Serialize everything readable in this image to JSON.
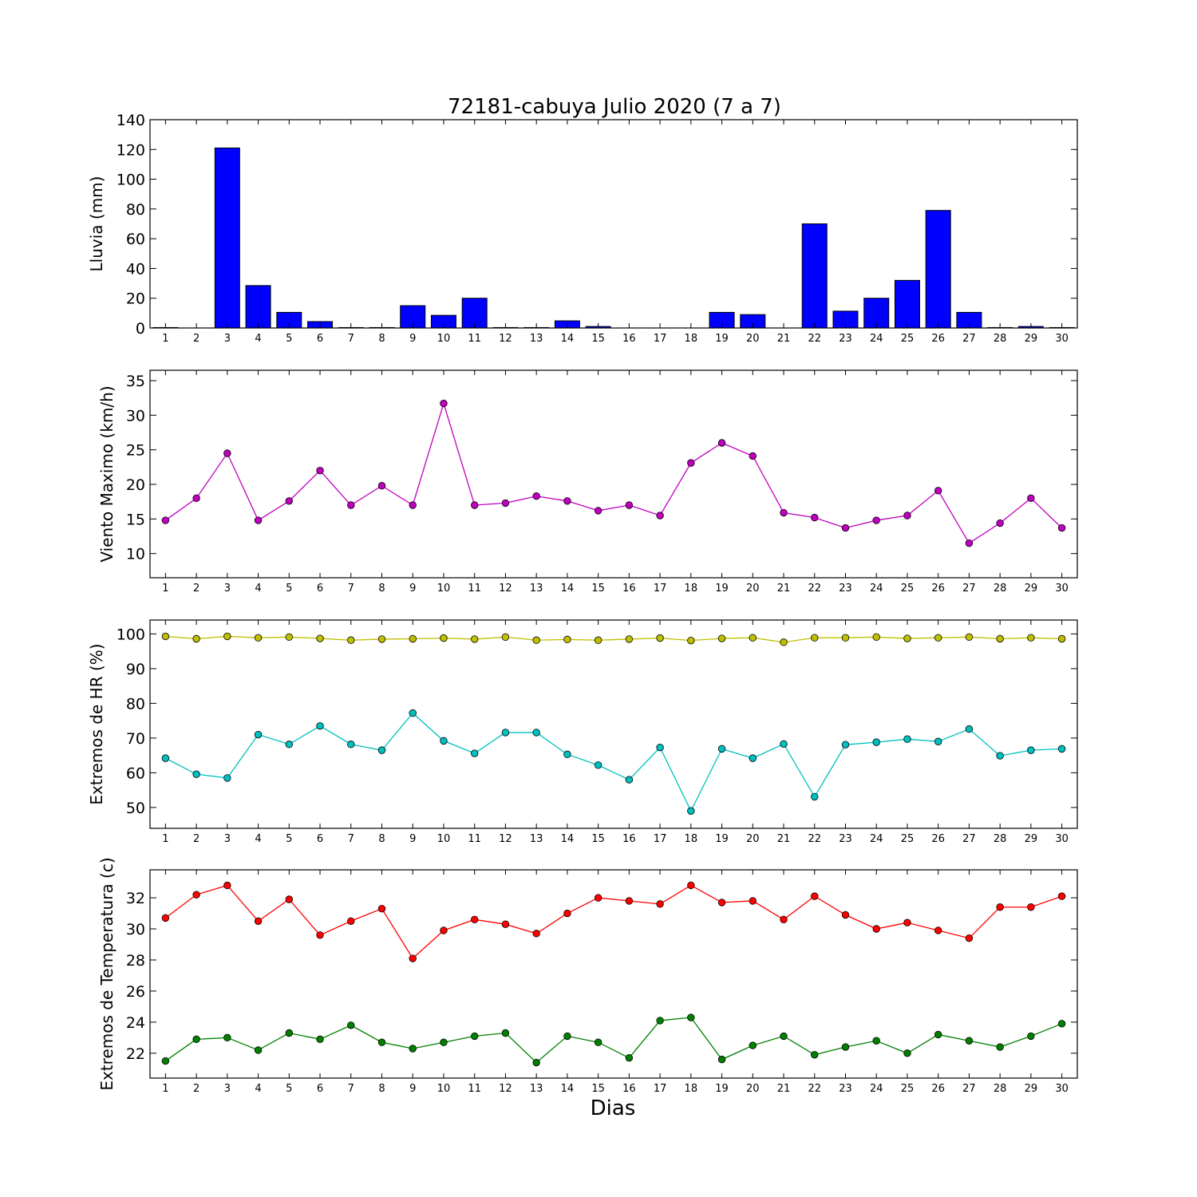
{
  "title": "72181-cabuya Julio 2020  (7 a 7)",
  "xlabel": "Dias",
  "chart_data": [
    {
      "type": "bar",
      "ylabel": "Lluvia (mm)",
      "ylim": [
        0,
        140
      ],
      "yticks": [
        0,
        20,
        40,
        60,
        80,
        100,
        120,
        140
      ],
      "x": [
        1,
        2,
        3,
        4,
        5,
        6,
        7,
        8,
        9,
        10,
        11,
        12,
        13,
        14,
        15,
        16,
        17,
        18,
        19,
        20,
        21,
        22,
        23,
        24,
        25,
        26,
        27,
        28,
        29,
        30
      ],
      "series": [
        {
          "color": "#0000ff",
          "values": [
            0.3,
            0,
            121,
            28.5,
            10.5,
            4.3,
            0.3,
            0.3,
            15,
            8.5,
            20,
            0.3,
            0.3,
            4.8,
            1,
            0,
            0,
            0,
            10.5,
            9,
            0,
            70,
            11.3,
            20,
            32,
            79,
            10.5,
            0.3,
            1,
            0.3
          ]
        }
      ]
    },
    {
      "type": "line",
      "ylabel": "Viento Maximo (km/h)",
      "ylim": [
        6.5,
        36.5
      ],
      "yticks": [
        10,
        15,
        20,
        25,
        30,
        35
      ],
      "x": [
        1,
        2,
        3,
        4,
        5,
        6,
        7,
        8,
        9,
        10,
        11,
        12,
        13,
        14,
        15,
        16,
        17,
        18,
        19,
        20,
        21,
        22,
        23,
        24,
        25,
        26,
        27,
        28,
        29,
        30
      ],
      "series": [
        {
          "color": "#bf00bf",
          "values": [
            14.8,
            18,
            24.5,
            14.8,
            17.6,
            22,
            17,
            19.8,
            17,
            31.7,
            17,
            17.3,
            18.3,
            17.6,
            16.2,
            17,
            15.5,
            23.1,
            26,
            24.1,
            15.9,
            15.2,
            13.7,
            14.8,
            15.5,
            19.1,
            11.5,
            14.4,
            18,
            13.7
          ]
        }
      ]
    },
    {
      "type": "line",
      "ylabel": "Extremos de HR (%)",
      "ylim": [
        44,
        104
      ],
      "yticks": [
        50,
        60,
        70,
        80,
        90,
        100
      ],
      "x": [
        1,
        2,
        3,
        4,
        5,
        6,
        7,
        8,
        9,
        10,
        11,
        12,
        13,
        14,
        15,
        16,
        17,
        18,
        19,
        20,
        21,
        22,
        23,
        24,
        25,
        26,
        27,
        28,
        29,
        30
      ],
      "series": [
        {
          "color": "#bfbf00",
          "values": [
            99.3,
            98.6,
            99.3,
            98.9,
            99.1,
            98.7,
            98.2,
            98.5,
            98.6,
            98.8,
            98.5,
            99.1,
            98.2,
            98.4,
            98.2,
            98.5,
            98.8,
            98.1,
            98.7,
            98.9,
            97.6,
            98.9,
            98.9,
            99.1,
            98.7,
            98.9,
            99.1,
            98.6,
            98.9,
            98.6
          ]
        },
        {
          "color": "#00bfbf",
          "values": [
            64.2,
            59.6,
            58.5,
            71,
            68.2,
            73.5,
            68.2,
            66.5,
            77.2,
            69.2,
            65.6,
            71.6,
            71.6,
            65.3,
            62.2,
            58,
            67.3,
            49,
            66.9,
            64.2,
            68.3,
            53.1,
            68.1,
            68.8,
            69.7,
            69,
            72.6,
            64.9,
            66.5,
            66.9
          ]
        }
      ]
    },
    {
      "type": "line",
      "ylabel": "Extremos de Temperatura (c)",
      "ylim": [
        20.4,
        33.8
      ],
      "yticks": [
        22,
        24,
        26,
        28,
        30,
        32
      ],
      "x": [
        1,
        2,
        3,
        4,
        5,
        6,
        7,
        8,
        9,
        10,
        11,
        12,
        13,
        14,
        15,
        16,
        17,
        18,
        19,
        20,
        21,
        22,
        23,
        24,
        25,
        26,
        27,
        28,
        29,
        30
      ],
      "series": [
        {
          "color": "#ff0000",
          "values": [
            30.7,
            32.2,
            32.8,
            30.5,
            31.9,
            29.6,
            30.5,
            31.3,
            28.1,
            29.9,
            30.6,
            30.3,
            29.7,
            31,
            32,
            31.8,
            31.6,
            32.8,
            31.7,
            31.8,
            30.6,
            32.1,
            30.9,
            30,
            30.4,
            29.9,
            29.4,
            31.4,
            31.4,
            32.1
          ]
        },
        {
          "color": "#008000",
          "values": [
            21.5,
            22.9,
            23,
            22.2,
            23.3,
            22.9,
            23.8,
            22.7,
            22.3,
            22.7,
            23.1,
            23.3,
            21.4,
            23.1,
            22.7,
            21.7,
            24.1,
            24.3,
            21.6,
            22.5,
            23.1,
            21.9,
            22.4,
            22.8,
            22,
            23.2,
            22.8,
            22.4,
            23.1,
            23.9
          ]
        }
      ]
    }
  ]
}
